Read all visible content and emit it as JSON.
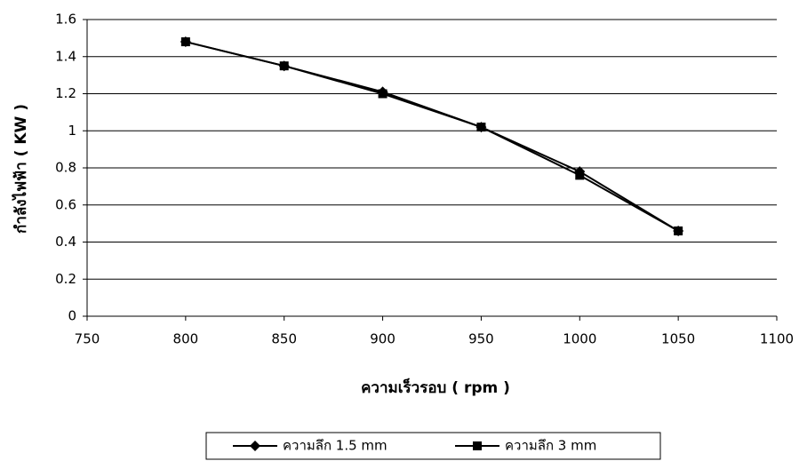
{
  "chart_data": {
    "type": "line",
    "x_label": "ความเร็วรอบ ( rpm )",
    "y_label": "กำลังไฟฟ้า ( KW )",
    "x": [
      800,
      850,
      900,
      950,
      1000,
      1050
    ],
    "series": [
      {
        "name": "ความลึก 1.5 mm",
        "color": "#000000",
        "marker": "diamond",
        "values": [
          1.48,
          1.35,
          1.21,
          1.02,
          0.78,
          0.46
        ]
      },
      {
        "name": "ความลึก 3 mm",
        "color": "#000000",
        "marker": "square",
        "values": [
          1.48,
          1.35,
          1.2,
          1.02,
          0.76,
          0.46
        ]
      }
    ],
    "xlim": [
      750,
      1100
    ],
    "xticks": [
      750,
      800,
      850,
      900,
      950,
      1000,
      1050,
      1100
    ],
    "ylim": [
      0,
      1.6
    ],
    "yticks": [
      0,
      0.2,
      0.4,
      0.6,
      0.8,
      1,
      1.2,
      1.4,
      1.6
    ],
    "grid": true,
    "legend": "bottom"
  }
}
